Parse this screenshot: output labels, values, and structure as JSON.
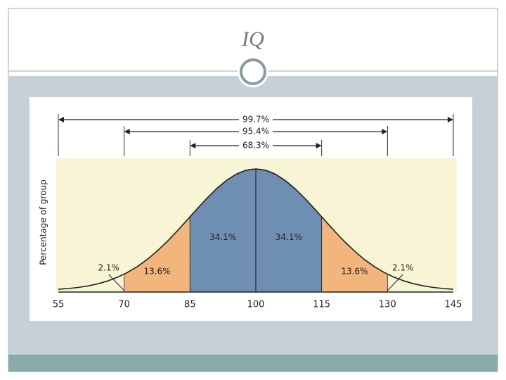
{
  "title": "IQ",
  "chart_data": {
    "type": "normal",
    "y_label": "Percentage of group",
    "xlim": [
      55,
      145
    ],
    "xticks": [
      55,
      70,
      85,
      100,
      115,
      130,
      145
    ],
    "regions": [
      {
        "from": 55,
        "to": 70,
        "value": 2.1,
        "value_label": "2.1%"
      },
      {
        "from": 70,
        "to": 85,
        "value": 13.6,
        "value_label": "13.6%",
        "color": "#f2b57c"
      },
      {
        "from": 85,
        "to": 100,
        "value": 34.1,
        "value_label": "34.1%",
        "color": "#6f8fb2"
      },
      {
        "from": 100,
        "to": 115,
        "value": 34.1,
        "value_label": "34.1%",
        "color": "#6f8fb2"
      },
      {
        "from": 115,
        "to": 130,
        "value": 13.6,
        "value_label": "13.6%",
        "color": "#f2b57c"
      },
      {
        "from": 130,
        "to": 145,
        "value": 2.1,
        "value_label": "2.1%"
      }
    ],
    "ranges": [
      {
        "from": 55,
        "to": 145,
        "value": 99.7,
        "value_label": "99.7%"
      },
      {
        "from": 70,
        "to": 130,
        "value": 95.4,
        "value_label": "95.4%"
      },
      {
        "from": 85,
        "to": 115,
        "value": 68.3,
        "value_label": "68.3%"
      }
    ]
  }
}
